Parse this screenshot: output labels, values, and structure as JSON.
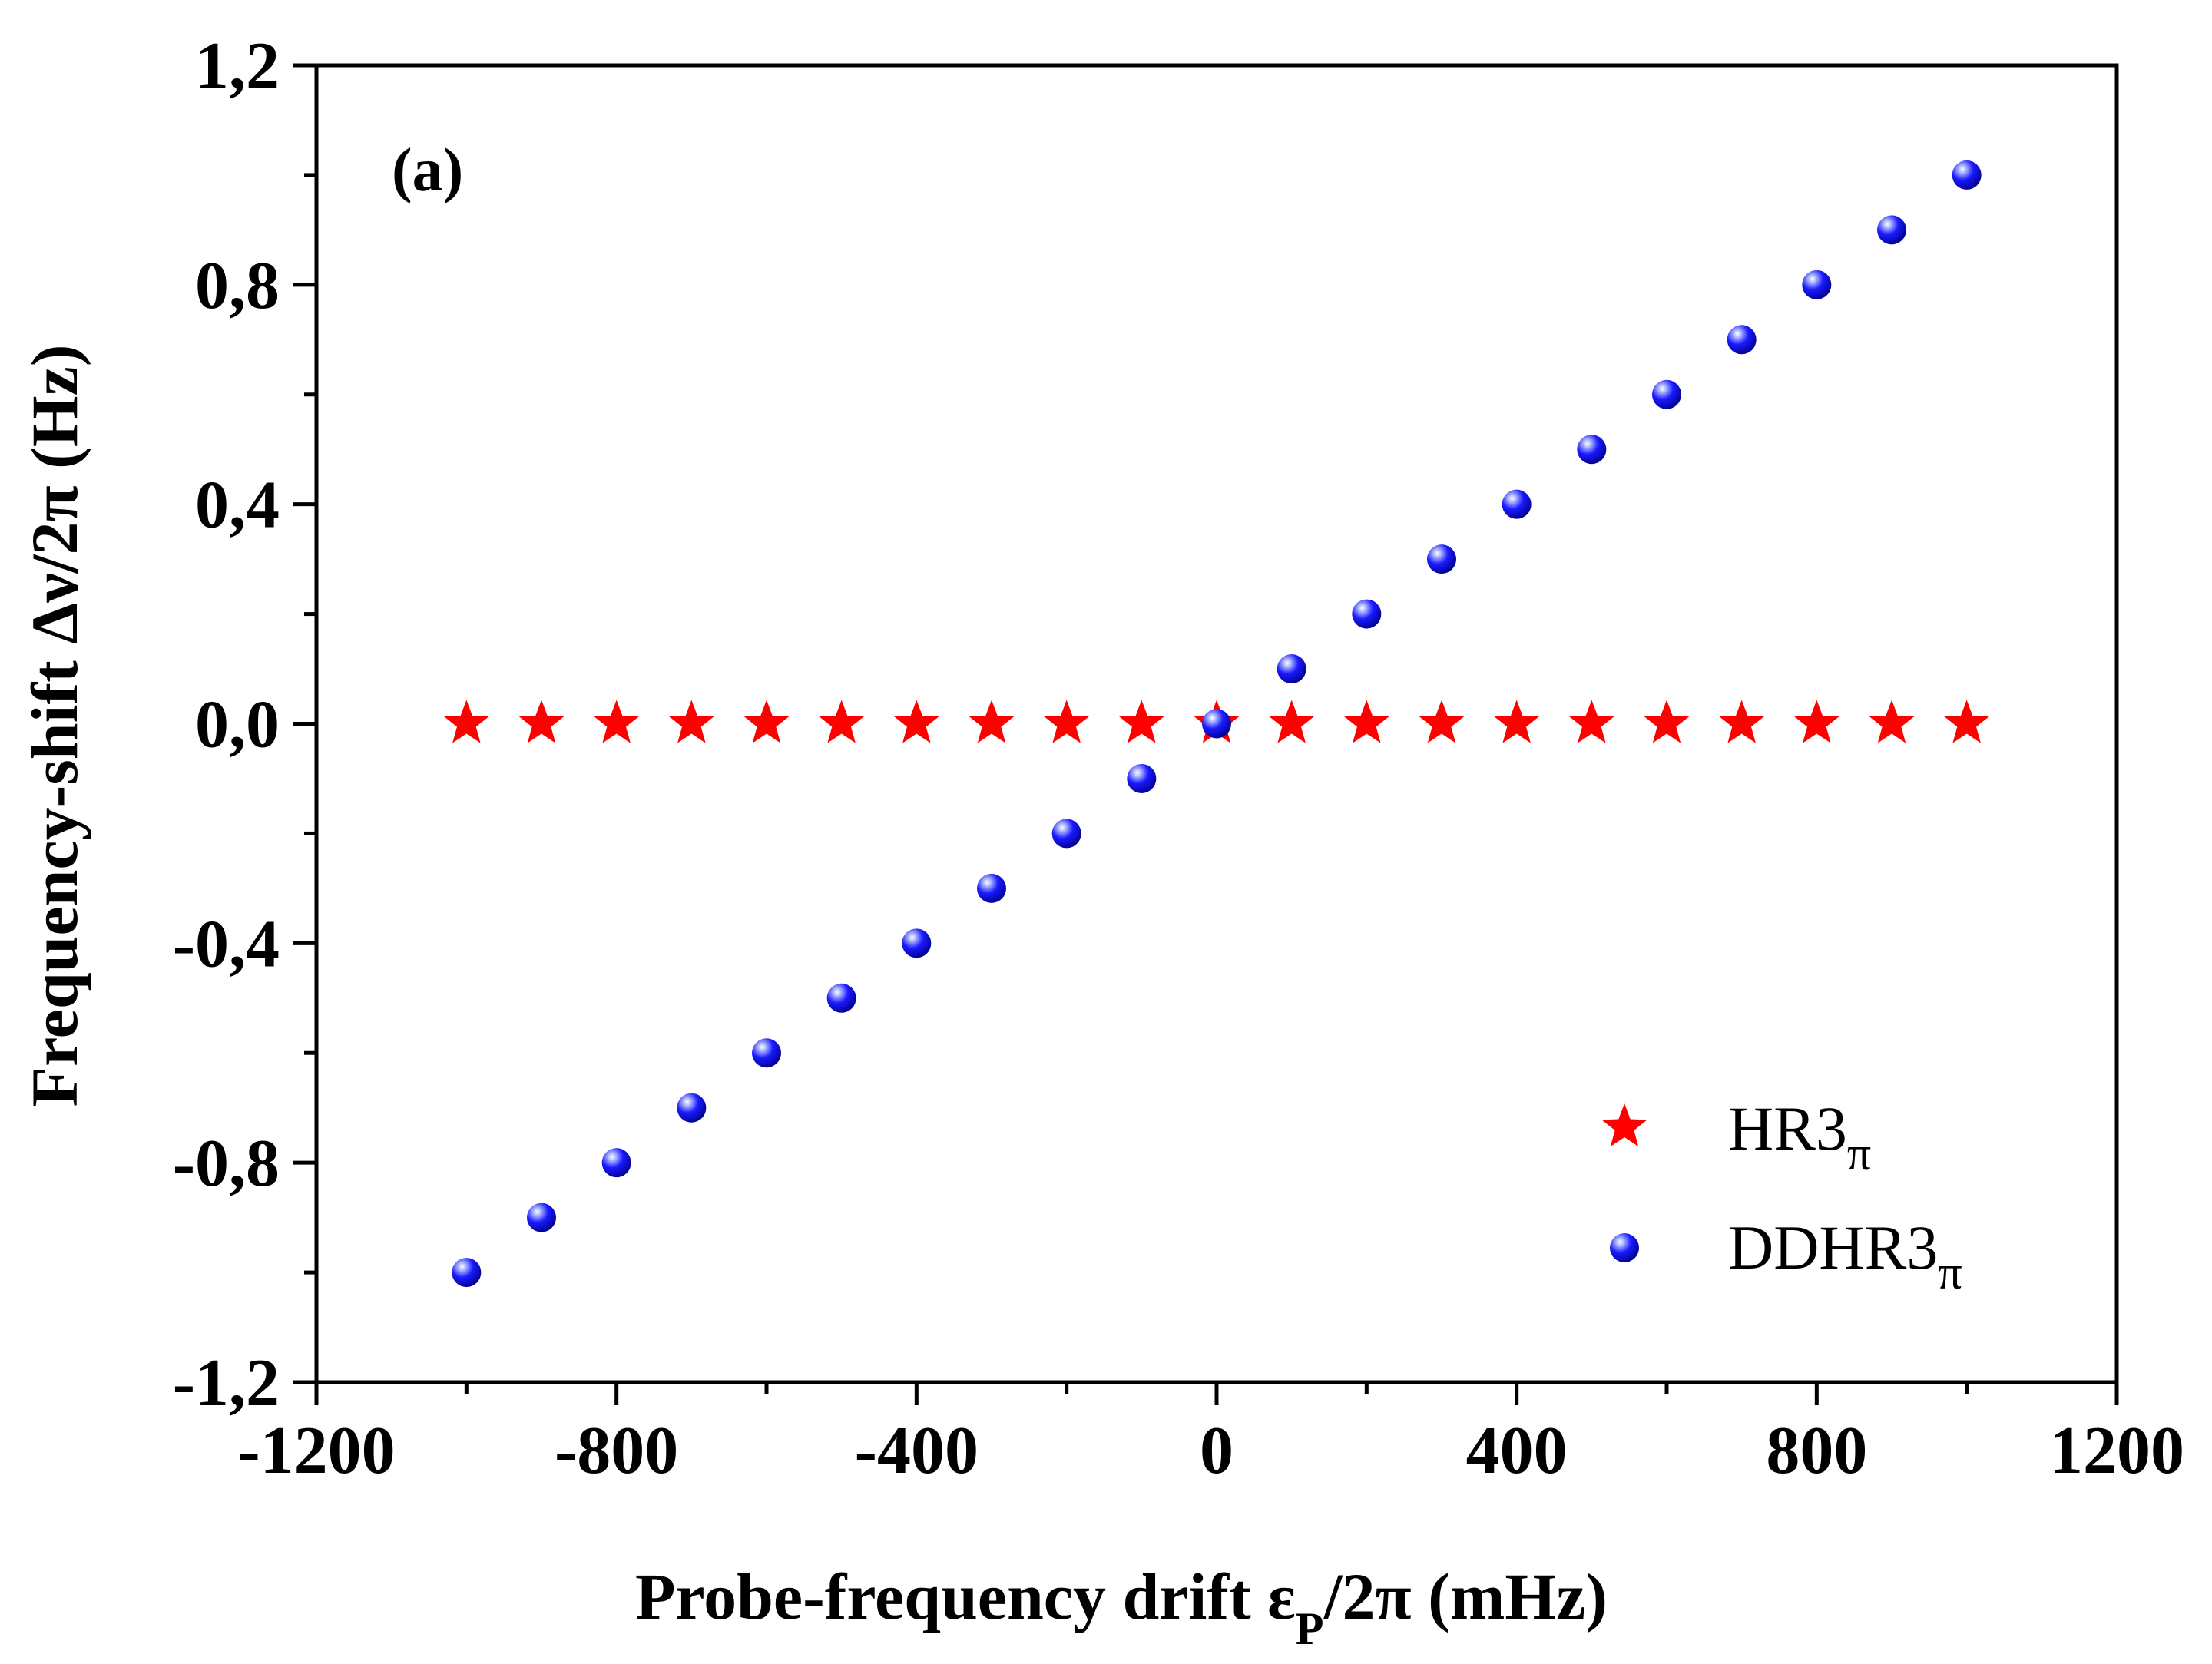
{
  "chart_data": {
    "type": "scatter",
    "panel_label": "(a)",
    "xlabel": {
      "main": "Probe-frequency drift ",
      "symbol": "ε",
      "symbol_sub": "P",
      "rest": "/2π (mHz)"
    },
    "ylabel": "Frequency-shift Δν/2π (Hz)",
    "xlim": [
      -1200,
      1200
    ],
    "ylim": [
      -1.2,
      1.2
    ],
    "xticks": [
      {
        "value": -1200,
        "label": "-1200"
      },
      {
        "value": -800,
        "label": "-800"
      },
      {
        "value": -400,
        "label": "-400"
      },
      {
        "value": 0,
        "label": "0"
      },
      {
        "value": 400,
        "label": "400"
      },
      {
        "value": 800,
        "label": "800"
      },
      {
        "value": 1200,
        "label": "1200"
      }
    ],
    "yticks": [
      {
        "value": -1.2,
        "label": "-1,2"
      },
      {
        "value": -0.8,
        "label": "-0,8"
      },
      {
        "value": -0.4,
        "label": "-0,4"
      },
      {
        "value": 0.0,
        "label": "0,0"
      },
      {
        "value": 0.4,
        "label": "0,4"
      },
      {
        "value": 0.8,
        "label": "0,8"
      },
      {
        "value": 1.2,
        "label": "1,2"
      }
    ],
    "x_minor_step": 200,
    "y_minor_step": 0.2,
    "legend_position": "bottom-right",
    "series": [
      {
        "name": "HR3",
        "name_sub": "π",
        "marker": "star",
        "color": "#ff0000",
        "x": [
          -1000,
          -900,
          -800,
          -700,
          -600,
          -500,
          -400,
          -300,
          -200,
          -100,
          0,
          100,
          200,
          300,
          400,
          500,
          600,
          700,
          800,
          900,
          1000
        ],
        "y": [
          0,
          0,
          0,
          0,
          0,
          0,
          0,
          0,
          0,
          0,
          0,
          0,
          0,
          0,
          0,
          0,
          0,
          0,
          0,
          0,
          0
        ]
      },
      {
        "name": "DDHR3",
        "name_sub": "π",
        "marker": "sphere",
        "color": "#0000ee",
        "x": [
          -1000,
          -900,
          -800,
          -700,
          -600,
          -500,
          -400,
          -300,
          -200,
          -100,
          0,
          100,
          200,
          300,
          400,
          500,
          600,
          700,
          800,
          900,
          1000
        ],
        "y": [
          -1.0,
          -0.9,
          -0.8,
          -0.7,
          -0.6,
          -0.5,
          -0.4,
          -0.3,
          -0.2,
          -0.1,
          0.0,
          0.1,
          0.2,
          0.3,
          0.4,
          0.5,
          0.6,
          0.7,
          0.8,
          0.9,
          1.0
        ]
      }
    ]
  }
}
